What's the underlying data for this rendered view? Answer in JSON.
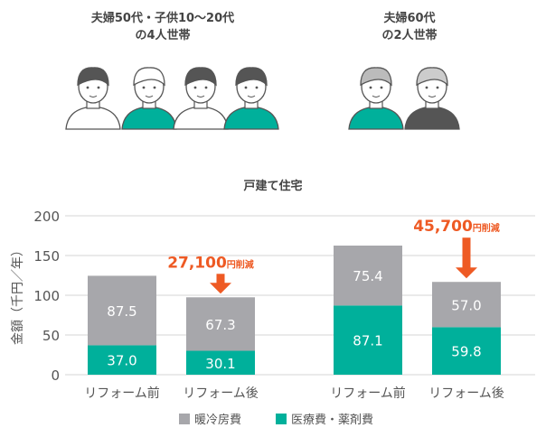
{
  "households": [
    {
      "label_line1": "夫婦50代・子供10～20代",
      "label_line2": "の4人世帯"
    },
    {
      "label_line1": "夫婦60代",
      "label_line2": "の2人世帯"
    }
  ],
  "colors": {
    "heating": "#a7a7ab",
    "medical": "#00b09b",
    "accent": "#ee5a24",
    "grid": "#d6d6d6",
    "text": "#444444"
  },
  "chart_data": {
    "type": "bar",
    "stacked": true,
    "title": "戸建て住宅",
    "ylabel": "金額（千円／年）",
    "ylim": [
      0,
      200
    ],
    "yticks": [
      0,
      50,
      100,
      150,
      200
    ],
    "grid": true,
    "legend_position": "bottom",
    "categories": [
      "リフォーム前",
      "リフォーム後",
      "リフォーム前",
      "リフォーム後"
    ],
    "series": [
      {
        "name": "医療費・薬剤費",
        "values": [
          37.0,
          30.1,
          87.1,
          59.8
        ],
        "labels": [
          "37.0",
          "30.1",
          "87.1",
          "59.8"
        ]
      },
      {
        "name": "暖冷房費",
        "values": [
          87.5,
          67.3,
          75.4,
          57.0
        ],
        "labels": [
          "87.5",
          "67.3",
          "75.4",
          "57.0"
        ]
      }
    ],
    "legend": [
      "暖冷房費",
      "医療費・薬剤費"
    ],
    "annotations": [
      {
        "category_index": 1,
        "amount": "27,100",
        "unit": "円削減"
      },
      {
        "category_index": 3,
        "amount": "45,700",
        "unit": "円削減"
      }
    ]
  }
}
